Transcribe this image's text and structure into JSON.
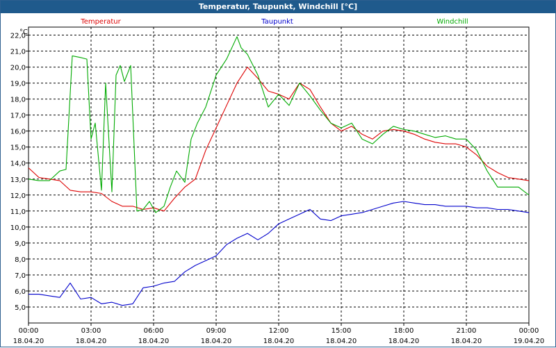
{
  "chart_data": {
    "type": "line",
    "title": "Temperatur, Taupunkt, Windchill [°C]",
    "ylabel": "°C",
    "xlabel": "",
    "ylim": [
      4.0,
      22.5
    ],
    "xlim": [
      0,
      24
    ],
    "grid": true,
    "yticks": [
      "5,0",
      "6,0",
      "7,0",
      "8,0",
      "9,0",
      "10,0",
      "11,0",
      "12,0",
      "13,0",
      "14,0",
      "15,0",
      "16,0",
      "17,0",
      "18,0",
      "19,0",
      "20,0",
      "21,0",
      "22,0"
    ],
    "xticks": [
      {
        "time": "00:00",
        "date": "18.04.20"
      },
      {
        "time": "03:00",
        "date": "18.04.20"
      },
      {
        "time": "06:00",
        "date": "18.04.20"
      },
      {
        "time": "09:00",
        "date": "18.04.20"
      },
      {
        "time": "12:00",
        "date": "18.04.20"
      },
      {
        "time": "15:00",
        "date": "18.04.20"
      },
      {
        "time": "18:00",
        "date": "18.04.20"
      },
      {
        "time": "21:00",
        "date": "18.04.20"
      },
      {
        "time": "00:00",
        "date": "19.04.20"
      }
    ],
    "series": [
      {
        "name": "Temperatur",
        "color": "#dd0000",
        "x": [
          0,
          0.5,
          1,
          1.5,
          2,
          2.5,
          3,
          3.5,
          4,
          4.5,
          5,
          5.5,
          6,
          6.5,
          7,
          7.5,
          8,
          8.5,
          9,
          9.5,
          10,
          10.5,
          11,
          11.5,
          12,
          12.5,
          13,
          13.5,
          14,
          14.5,
          15,
          15.5,
          16,
          16.5,
          17,
          17.5,
          18,
          18.5,
          19,
          19.5,
          20,
          20.5,
          21,
          21.5,
          22,
          22.5,
          23,
          23.5,
          24
        ],
        "values": [
          13.7,
          13.1,
          13.0,
          12.9,
          12.3,
          12.2,
          12.2,
          12.1,
          11.6,
          11.3,
          11.3,
          11.1,
          11.2,
          11.0,
          11.8,
          12.5,
          13.0,
          14.8,
          16.2,
          17.6,
          19.0,
          20.0,
          19.3,
          18.5,
          18.3,
          18.0,
          19.0,
          18.6,
          17.5,
          16.5,
          16.0,
          16.3,
          15.8,
          15.5,
          16.0,
          16.1,
          16.0,
          15.8,
          15.5,
          15.3,
          15.2,
          15.2,
          15.0,
          14.5,
          13.8,
          13.4,
          13.1,
          13.0,
          12.9
        ]
      },
      {
        "name": "Taupunkt",
        "color": "#0000cc",
        "x": [
          0,
          0.5,
          1,
          1.5,
          2,
          2.5,
          3,
          3.5,
          4,
          4.5,
          5,
          5.5,
          6,
          6.5,
          7,
          7.5,
          8,
          8.5,
          9,
          9.5,
          10,
          10.5,
          11,
          11.5,
          12,
          12.5,
          13,
          13.5,
          14,
          14.5,
          15,
          15.5,
          16,
          16.5,
          17,
          17.5,
          18,
          18.5,
          19,
          19.5,
          20,
          20.5,
          21,
          21.5,
          22,
          22.5,
          23,
          23.5,
          24
        ],
        "values": [
          5.8,
          5.8,
          5.7,
          5.6,
          6.5,
          5.5,
          5.6,
          5.2,
          5.3,
          5.1,
          5.2,
          6.2,
          6.3,
          6.5,
          6.6,
          7.2,
          7.6,
          7.9,
          8.2,
          8.9,
          9.3,
          9.6,
          9.2,
          9.6,
          10.2,
          10.5,
          10.8,
          11.1,
          10.5,
          10.4,
          10.7,
          10.8,
          10.9,
          11.1,
          11.3,
          11.5,
          11.6,
          11.5,
          11.4,
          11.4,
          11.3,
          11.3,
          11.3,
          11.2,
          11.2,
          11.1,
          11.1,
          11.0,
          10.9
        ]
      },
      {
        "name": "Windchill",
        "color": "#00aa00",
        "x": [
          0,
          0.5,
          1,
          1.5,
          1.8,
          2.1,
          2.5,
          2.8,
          3.0,
          3.2,
          3.5,
          3.7,
          4.0,
          4.2,
          4.4,
          4.6,
          4.9,
          5.2,
          5.5,
          5.8,
          6.1,
          6.5,
          6.8,
          7.1,
          7.5,
          7.8,
          8.1,
          8.5,
          9.0,
          9.5,
          10.0,
          10.2,
          10.5,
          11.0,
          11.5,
          12.0,
          12.5,
          13.0,
          13.5,
          14.0,
          14.5,
          15.0,
          15.5,
          16.0,
          16.5,
          17.0,
          17.5,
          18.0,
          18.5,
          19.0,
          19.5,
          20.0,
          20.5,
          21.0,
          21.5,
          22.0,
          22.5,
          23.0,
          23.5,
          24.0
        ],
        "values": [
          13.0,
          12.9,
          12.9,
          13.5,
          13.6,
          20.7,
          20.6,
          20.5,
          15.5,
          16.5,
          12.3,
          19.0,
          12.2,
          19.5,
          20.1,
          19.1,
          20.1,
          11.0,
          11.1,
          11.6,
          10.9,
          11.3,
          12.5,
          13.5,
          12.8,
          15.5,
          16.5,
          17.5,
          19.5,
          20.5,
          21.9,
          21.2,
          20.8,
          19.5,
          17.5,
          18.3,
          17.6,
          19.0,
          18.2,
          17.3,
          16.5,
          16.2,
          16.5,
          15.5,
          15.2,
          15.8,
          16.3,
          16.1,
          16.0,
          15.8,
          15.6,
          15.7,
          15.5,
          15.5,
          14.8,
          13.5,
          12.5,
          12.5,
          12.5,
          12.0
        ]
      }
    ]
  }
}
